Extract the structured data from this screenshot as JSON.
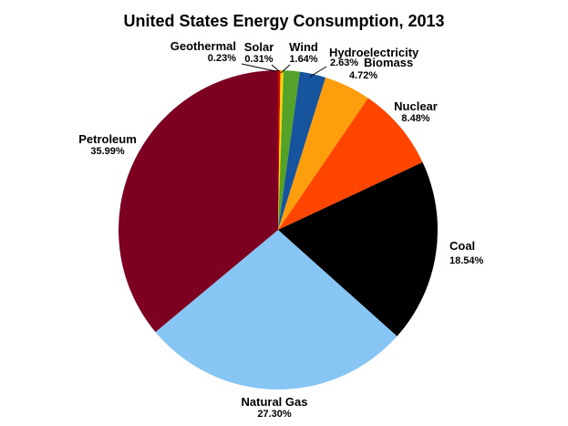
{
  "chart_data": {
    "type": "pie",
    "title": "United States Energy Consumption, 2013",
    "unit": "%",
    "start_angle_deg": 0,
    "direction": "clockwise",
    "legend": "none",
    "slices": [
      {
        "label": "Geothermal",
        "value": 0.23,
        "display": "0.23%",
        "color": "#dd0000"
      },
      {
        "label": "Solar",
        "value": 0.31,
        "display": "0.31%",
        "color": "#ffd400"
      },
      {
        "label": "Wind",
        "value": 1.64,
        "display": "1.64%",
        "color": "#55a228"
      },
      {
        "label": "Hydroelectricity",
        "value": 2.63,
        "display": "2.63%",
        "color": "#17549e"
      },
      {
        "label": "Biomass",
        "value": 4.72,
        "display": "4.72%",
        "color": "#ff9e0d"
      },
      {
        "label": "Nuclear",
        "value": 8.48,
        "display": "8.48%",
        "color": "#ff4500"
      },
      {
        "label": "Coal",
        "value": 18.54,
        "display": "18.54%",
        "color": "#000000"
      },
      {
        "label": "Natural Gas",
        "value": 27.3,
        "display": "27.30%",
        "color": "#87c5f5"
      },
      {
        "label": "Petroleum",
        "value": 35.99,
        "display": "35.99%",
        "color": "#7d0023"
      }
    ]
  }
}
